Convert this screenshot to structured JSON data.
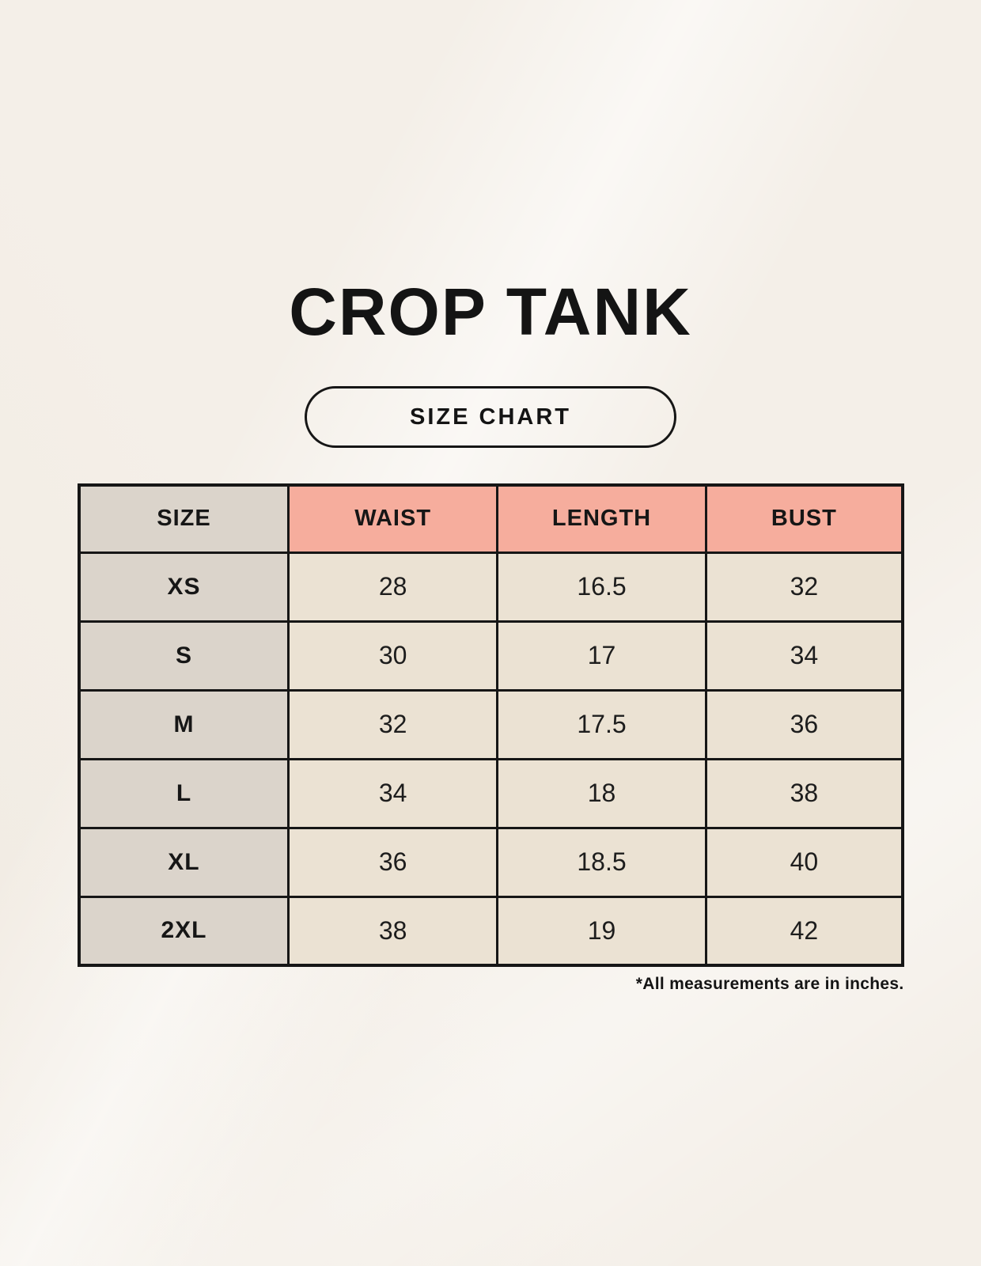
{
  "header": {
    "title": "CROP TANK",
    "badge_label": "SIZE CHART"
  },
  "chart_data": {
    "type": "table",
    "title": "CROP TANK",
    "columns": [
      "SIZE",
      "WAIST",
      "LENGTH",
      "BUST"
    ],
    "rows": [
      [
        "XS",
        "28",
        "16.5",
        "32"
      ],
      [
        "S",
        "30",
        "17",
        "34"
      ],
      [
        "M",
        "32",
        "17.5",
        "36"
      ],
      [
        "L",
        "34",
        "18",
        "38"
      ],
      [
        "XL",
        "36",
        "18.5",
        "40"
      ],
      [
        "2XL",
        "38",
        "19",
        "42"
      ]
    ],
    "note": "*All measurements are in inches."
  },
  "footer": {
    "note": "*All measurements are in inches."
  },
  "colors": {
    "background": "#f4efe8",
    "header_accent_pink": "#f6ad9d",
    "size_column_gray": "#dbd4cb",
    "cell_cream": "#ebe2d3",
    "border_black": "#161616"
  }
}
